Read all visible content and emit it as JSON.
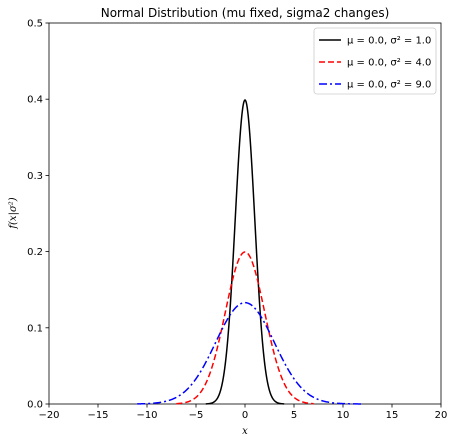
{
  "chart_data": {
    "type": "line",
    "title": "Normal Distribution (mu fixed, sigma2 changes)",
    "xlabel": "x",
    "ylabel": "f(x|σ²)",
    "xlim": [
      -20,
      20
    ],
    "ylim": [
      0,
      0.5
    ],
    "xticks": [
      -20,
      -15,
      -10,
      -5,
      0,
      5,
      10,
      15,
      20
    ],
    "yticks": [
      0.0,
      0.1,
      0.2,
      0.3,
      0.4,
      0.5
    ],
    "xtick_labels": [
      "−20",
      "−15",
      "−10",
      "−5",
      "0",
      "5",
      "10",
      "15",
      "20"
    ],
    "ytick_labels": [
      "0.0",
      "0.1",
      "0.2",
      "0.3",
      "0.4",
      "0.5"
    ],
    "grid": false,
    "legend_position": "top-right",
    "series": [
      {
        "name": "μ = 0.0,  σ² = 1.0",
        "mu": 0.0,
        "sigma2": 1.0,
        "color": "#000000",
        "style": "solid",
        "x_range": [
          -4,
          4
        ],
        "peak": 0.399
      },
      {
        "name": "μ = 0.0,  σ² = 4.0",
        "mu": 0.0,
        "sigma2": 4.0,
        "color": "#ff0000",
        "style": "dashed",
        "x_range": [
          -7,
          7
        ],
        "peak": 0.199
      },
      {
        "name": "μ = 0.0,  σ² = 9.0",
        "mu": 0.0,
        "sigma2": 9.0,
        "color": "#0000ff",
        "style": "dashdot",
        "x_range": [
          -11,
          12
        ],
        "peak": 0.133
      }
    ]
  }
}
